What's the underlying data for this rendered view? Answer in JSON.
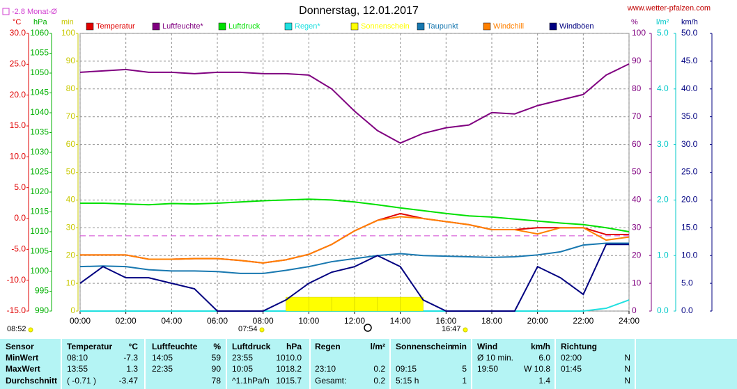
{
  "chart_data": {
    "type": "line",
    "title": "Donnerstag, 12.01.2017",
    "source": "www.wetter-pfalzen.com",
    "monthly_average": {
      "value": -2.8,
      "label": "-2.8 Monat-Ø",
      "color": "#d040d0"
    },
    "annotations": [
      "08:52",
      "07:54",
      "16:47"
    ],
    "x": [
      0,
      1,
      2,
      3,
      4,
      5,
      6,
      7,
      8,
      9,
      10,
      11,
      12,
      13,
      14,
      15,
      16,
      17,
      18,
      19,
      20,
      21,
      22,
      23,
      24
    ],
    "xlim": [
      0,
      24
    ],
    "xticks": [
      {
        "value": 0,
        "label": "00:00"
      },
      {
        "value": 2,
        "label": "02:00"
      },
      {
        "value": 4,
        "label": "04:00"
      },
      {
        "value": 6,
        "label": "06:00"
      },
      {
        "value": 8,
        "label": "08:00"
      },
      {
        "value": 10,
        "label": "10:00"
      },
      {
        "value": 12,
        "label": "12:00"
      },
      {
        "value": 14,
        "label": "14:00"
      },
      {
        "value": 16,
        "label": "16:00"
      },
      {
        "value": 18,
        "label": "18:00"
      },
      {
        "value": 20,
        "label": "20:00"
      },
      {
        "value": 22,
        "label": "22:00"
      },
      {
        "value": 24,
        "label": "24:00"
      }
    ],
    "grid": true,
    "axes": {
      "temp": {
        "unit": "°C",
        "color": "#e00000",
        "lim": [
          -15,
          30
        ],
        "ticks": [
          {
            "value": 30,
            "label": "30.0"
          },
          {
            "value": 25,
            "label": "25.0"
          },
          {
            "value": 20,
            "label": "20.0"
          },
          {
            "value": 15,
            "label": "15.0"
          },
          {
            "value": 10,
            "label": "10.0"
          },
          {
            "value": 5,
            "label": "5.0"
          },
          {
            "value": 0,
            "label": "0.0"
          },
          {
            "value": -5,
            "label": "-5.0"
          },
          {
            "value": -10,
            "label": "-10.0"
          },
          {
            "value": -15,
            "label": "-15.0"
          }
        ]
      },
      "hpa": {
        "unit": "hPa",
        "color": "#00b000",
        "lim": [
          990,
          1060
        ],
        "ticks": [
          1060,
          1055,
          1050,
          1045,
          1040,
          1035,
          1030,
          1025,
          1020,
          1015,
          1010,
          1005,
          1000,
          995,
          990
        ]
      },
      "min": {
        "unit": "min",
        "color": "#c8c800",
        "lim": [
          0,
          100
        ],
        "ticks": [
          100,
          90,
          80,
          70,
          60,
          50,
          40,
          30,
          20,
          10,
          0
        ]
      },
      "pct": {
        "unit": "%",
        "color": "#800080",
        "lim": [
          0,
          100
        ],
        "ticks": [
          100,
          90,
          80,
          70,
          60,
          50,
          40,
          30,
          20,
          10,
          0
        ]
      },
      "rain": {
        "unit": "l/m²",
        "color": "#00c8c8",
        "lim": [
          0,
          5
        ],
        "ticks": [
          {
            "value": 5,
            "label": "5.0"
          },
          {
            "value": 4,
            "label": "4.0"
          },
          {
            "value": 3,
            "label": "3.0"
          },
          {
            "value": 2,
            "label": "2.0"
          },
          {
            "value": 1,
            "label": "1.0"
          },
          {
            "value": 0,
            "label": "0.0"
          }
        ]
      },
      "wind": {
        "unit": "km/h",
        "color": "#000080",
        "lim": [
          0,
          50
        ],
        "ticks": [
          {
            "value": 50,
            "label": "50.0"
          },
          {
            "value": 45,
            "label": "45.0"
          },
          {
            "value": 40,
            "label": "40.0"
          },
          {
            "value": 35,
            "label": "35.0"
          },
          {
            "value": 30,
            "label": "30.0"
          },
          {
            "value": 25,
            "label": "25.0"
          },
          {
            "value": 20,
            "label": "20.0"
          },
          {
            "value": 15,
            "label": "15.0"
          },
          {
            "value": 10,
            "label": "10.0"
          },
          {
            "value": 5,
            "label": "5.0"
          },
          {
            "value": 0,
            "label": "0.0"
          }
        ]
      }
    },
    "series": [
      {
        "name": "Temperatur",
        "color": "#e00000",
        "axis": "temp",
        "values": [
          -5.9,
          -5.9,
          -5.9,
          -6.6,
          -6.6,
          -6.5,
          -6.5,
          -6.8,
          -7.2,
          -6.7,
          -5.8,
          -4.2,
          -2.0,
          -0.3,
          0.8,
          0.0,
          -0.5,
          -1.0,
          -1.8,
          -1.8,
          -1.5,
          -1.5,
          -1.5,
          -2.6,
          -2.6
        ]
      },
      {
        "name": "Luftfeuchte*",
        "color": "#800080",
        "axis": "pct",
        "values": [
          86,
          86.5,
          87,
          86,
          86,
          85.5,
          86,
          86,
          85.5,
          85.5,
          85,
          80,
          72,
          65,
          60.5,
          64,
          66,
          67,
          71.5,
          71,
          74,
          76,
          78,
          85,
          89
        ]
      },
      {
        "name": "Luftdruck",
        "color": "#00e000",
        "axis": "hpa",
        "values": [
          1017.2,
          1017.2,
          1017.0,
          1016.8,
          1017.1,
          1017.0,
          1017.2,
          1017.5,
          1017.8,
          1018.0,
          1018.2,
          1018.0,
          1017.5,
          1016.8,
          1016.0,
          1015.3,
          1014.6,
          1014.0,
          1013.7,
          1013.2,
          1012.7,
          1012.2,
          1011.8,
          1011.0,
          1010.0
        ]
      },
      {
        "name": "Regen*",
        "color": "#20e0e0",
        "axis": "rain",
        "values": [
          0,
          0,
          0,
          0,
          0,
          0,
          0,
          0,
          0,
          0,
          0,
          0,
          0,
          0,
          0,
          0,
          0,
          0,
          0,
          0,
          0,
          0,
          0,
          0.05,
          0.2
        ]
      },
      {
        "name": "Sonnenschein",
        "color": "#ffff00",
        "axis": "min",
        "type": "bar",
        "values": [
          0,
          0,
          0,
          0,
          0,
          0,
          0,
          0,
          0,
          5,
          5,
          5,
          5,
          5,
          5,
          0,
          0,
          0,
          0,
          0,
          0,
          0,
          0,
          0,
          0
        ]
      },
      {
        "name": "Taupunkt",
        "color": "#1878b0",
        "axis": "temp",
        "values": [
          -7.8,
          -7.7,
          -7.8,
          -8.3,
          -8.5,
          -8.5,
          -8.6,
          -8.9,
          -8.9,
          -8.4,
          -7.8,
          -7.0,
          -6.5,
          -6.0,
          -5.7,
          -6.0,
          -6.1,
          -6.2,
          -6.3,
          -6.2,
          -5.9,
          -5.4,
          -4.3,
          -4.0,
          -4.0
        ]
      },
      {
        "name": "Windchill",
        "color": "#ff8000",
        "axis": "temp",
        "values": [
          -5.9,
          -5.9,
          -5.9,
          -6.6,
          -6.6,
          -6.5,
          -6.5,
          -6.8,
          -7.2,
          -6.7,
          -5.8,
          -4.2,
          -2.0,
          -0.3,
          0.3,
          0.0,
          -0.5,
          -1.0,
          -1.8,
          -1.8,
          -2.5,
          -1.5,
          -1.5,
          -3.5,
          -3.0
        ]
      },
      {
        "name": "Windböen",
        "color": "#000080",
        "axis": "wind",
        "values": [
          5,
          8,
          6,
          6,
          5,
          4,
          0,
          0,
          0,
          2,
          5,
          7,
          8,
          10,
          8,
          2,
          0,
          0,
          0,
          0,
          8,
          6,
          3,
          12,
          12
        ]
      }
    ]
  },
  "table": {
    "header": {
      "label": "Sensor",
      "t_time": "Temperatur",
      "t_val": "°C",
      "h_time": "Luftfeuchte",
      "h_val": "%",
      "p_time": "Luftdruck",
      "p_val": "hPa",
      "r_time": "Regen",
      "r_val": "l/m²",
      "s_time": "Sonnenschein",
      "s_val": "min",
      "w_time": "Wind",
      "w_val": "km/h",
      "d_time": "Richtung"
    },
    "rows": [
      {
        "label": "MinWert",
        "t_time": "08:10",
        "t_val": "-7.3",
        "h_time": "14:05",
        "h_val": "59",
        "p_time": "23:55",
        "p_val": "1010.0",
        "w_time": "Ø 10 min.",
        "w_val": "6.0",
        "d_time": "02:00",
        "d_val": "N"
      },
      {
        "label": "MaxWert",
        "t_time": "13:55",
        "t_val": "1.3",
        "h_time": "22:35",
        "h_val": "90",
        "p_time": "10:05",
        "p_val": "1018.2",
        "r_time": "23:10",
        "r_val": "0.2",
        "s_time": "09:15",
        "s_val": "5",
        "w_time": "19:50",
        "w_val": "W 10.8",
        "d_time": "01:45",
        "d_val": "N"
      },
      {
        "label": "Durchschnitt",
        "t_time": "( -0.71 )",
        "t_val": "-3.47",
        "h_val": "78",
        "p_time": "^1.1hPa/h",
        "p_val": "1015.7",
        "r_time": "Gesamt:",
        "r_val": "0.2",
        "s_time": "5:15 h",
        "s_val": "1",
        "w_val": "1.4",
        "d_val": "N"
      }
    ]
  }
}
